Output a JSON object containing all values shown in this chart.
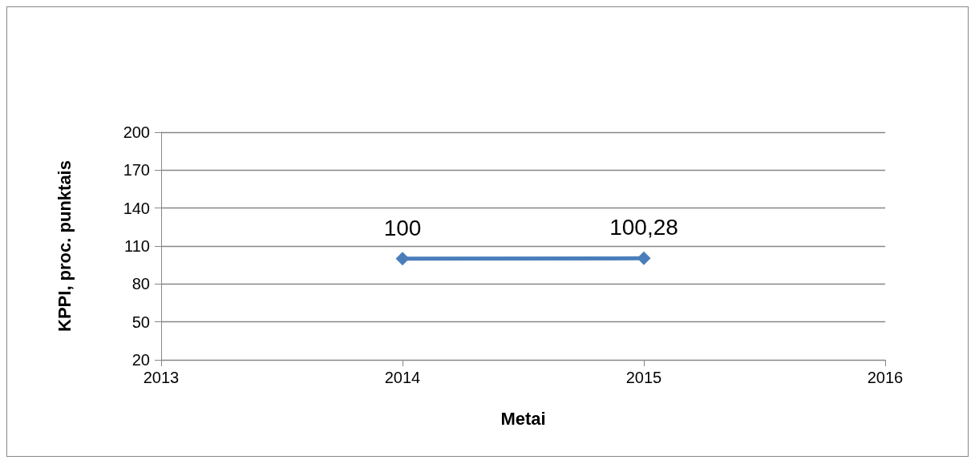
{
  "chart_data": {
    "type": "line",
    "xlabel": "Metai",
    "ylabel": "KPPI, proc. punktais",
    "x": [
      2014,
      2015
    ],
    "series": [
      {
        "color": "#4a7ebb",
        "values": [
          100,
          100.28
        ],
        "value_labels": [
          "100",
          "100,28"
        ]
      }
    ],
    "xlim": [
      2013,
      2016
    ],
    "xticks": [
      2013,
      2014,
      2015,
      2016
    ],
    "ylim": [
      20,
      200
    ],
    "yticks": [
      20,
      50,
      80,
      110,
      140,
      170,
      200
    ],
    "grid": "y",
    "marker": "diamond",
    "line_style": "solid"
  }
}
